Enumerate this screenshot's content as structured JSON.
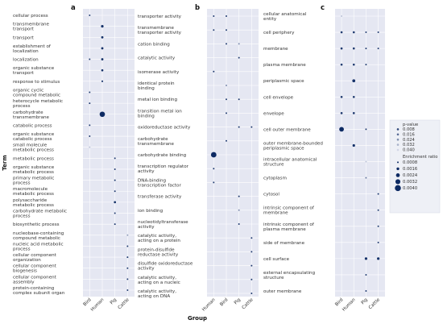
{
  "axis_titles": {
    "x": "Group",
    "y": "Term"
  },
  "legend": {
    "pvalue_title": "p-value",
    "pvalue_labels": [
      "0.008",
      "0.016",
      "0.024",
      "0.032",
      "0.040"
    ],
    "ratio_title": "Enrichment ratio",
    "ratio_labels": [
      "0.0008",
      "0.0016",
      "0.0024",
      "0.0032",
      "0.0040"
    ]
  },
  "colors": {
    "panel_bg": "#e5e7f2",
    "grid": "#ffffff",
    "dot_dark": "#0d2a63",
    "dot_light": "#c9cde0"
  },
  "chart_data": [
    {
      "type": "scatter",
      "panel": "a",
      "groups": [
        "Bird",
        "Human",
        "Pig",
        "Cattle"
      ],
      "terms_left": [
        "cellular process",
        "transmembrane transport",
        "transport",
        "establishment of localization",
        "localization",
        "organic substance transport",
        "response to stimulus",
        "organic cyclic compound metabolic process",
        "heterocycle metabolic process",
        "carbohydrate transmembrane transport",
        "catabolic process",
        "organic substance catabolic process",
        "small molecule metabolic process",
        "metabolic process",
        "organic substance metabolic process",
        "primary metabolic process",
        "macromolecule metabolic process",
        "polysaccharide metabolic process",
        "carbohydrate metabolic process",
        "biosynthetic process",
        "nucleobase-containing compound metabolic process",
        "nucleic acid metabolic process",
        "cellular component organization",
        "cellular component biogenesis",
        "cellular component assembly",
        "protein-containing complex subunit organ"
      ],
      "terms_right": [
        "transporter activity",
        "transmembrane transporter activity",
        "cation binding",
        "catalytic activity",
        "isomerase activity",
        "identical protein binding",
        "metal ion binding",
        "transition metal ion binding",
        "oxidoreductase activity",
        "carbohydrate transmembrane transporter",
        "carbohydrate binding",
        "transcription regulator activity",
        "DNA-binding transcription factor activity",
        "transferase activity",
        "ion binding",
        "nucleotidyltransferase activity",
        "catalytic activity, acting on a protein",
        "protein-disulfide reductase activity",
        "disulfide oxidoreductase activity",
        "catalytic activity, acting on a nucleic",
        "catalytic activity, acting on DNA"
      ],
      "points": [
        {
          "x": "Bird",
          "y": "cellular process",
          "pvalue": 0.008,
          "ratio": 0.0008
        },
        {
          "x": "Human",
          "y": "transmembrane transport",
          "pvalue": 0.004,
          "ratio": 0.0015
        },
        {
          "x": "Human",
          "y": "transport",
          "pvalue": 0.004,
          "ratio": 0.0013
        },
        {
          "x": "Human",
          "y": "establishment of localization",
          "pvalue": 0.004,
          "ratio": 0.0013
        },
        {
          "x": "Bird",
          "y": "localization",
          "pvalue": 0.006,
          "ratio": 0.0008
        },
        {
          "x": "Human",
          "y": "localization",
          "pvalue": 0.004,
          "ratio": 0.0013
        },
        {
          "x": "Human",
          "y": "organic substance transport",
          "pvalue": 0.004,
          "ratio": 0.0012
        },
        {
          "x": "Human",
          "y": "response to stimulus",
          "pvalue": 0.006,
          "ratio": 0.0009
        },
        {
          "x": "Bird",
          "y": "organic cyclic compound metabolic process",
          "pvalue": 0.006,
          "ratio": 0.0008
        },
        {
          "x": "Bird",
          "y": "heterocycle metabolic process",
          "pvalue": 0.006,
          "ratio": 0.0008
        },
        {
          "x": "Human",
          "y": "carbohydrate transmembrane transport",
          "pvalue": 0.002,
          "ratio": 0.0035
        },
        {
          "x": "Bird",
          "y": "catabolic process",
          "pvalue": 0.006,
          "ratio": 0.0008
        },
        {
          "x": "Bird",
          "y": "organic substance catabolic process",
          "pvalue": 0.006,
          "ratio": 0.0008
        },
        {
          "x": "Bird",
          "y": "small molecule metabolic process",
          "pvalue": 0.036,
          "ratio": 0.0008
        },
        {
          "x": "Pig",
          "y": "metabolic process",
          "pvalue": 0.006,
          "ratio": 0.0008
        },
        {
          "x": "Pig",
          "y": "organic substance metabolic process",
          "pvalue": 0.006,
          "ratio": 0.0008
        },
        {
          "x": "Pig",
          "y": "primary metabolic process",
          "pvalue": 0.006,
          "ratio": 0.0008
        },
        {
          "x": "Pig",
          "y": "macromolecule metabolic process",
          "pvalue": 0.006,
          "ratio": 0.0008
        },
        {
          "x": "Pig",
          "y": "polysaccharide metabolic process",
          "pvalue": 0.004,
          "ratio": 0.0012
        },
        {
          "x": "Pig",
          "y": "carbohydrate metabolic process",
          "pvalue": 0.006,
          "ratio": 0.0008
        },
        {
          "x": "Pig",
          "y": "biosynthetic process",
          "pvalue": 0.006,
          "ratio": 0.0008
        },
        {
          "x": "Cattle",
          "y": "nucleobase-containing compound metabolic process",
          "pvalue": 0.028,
          "ratio": 0.0008
        },
        {
          "x": "Cattle",
          "y": "nucleic acid metabolic process",
          "pvalue": 0.006,
          "ratio": 0.0008
        },
        {
          "x": "Cattle",
          "y": "cellular component organization",
          "pvalue": 0.006,
          "ratio": 0.0008
        },
        {
          "x": "Cattle",
          "y": "cellular component biogenesis",
          "pvalue": 0.006,
          "ratio": 0.0008
        },
        {
          "x": "Cattle",
          "y": "cellular component assembly",
          "pvalue": 0.006,
          "ratio": 0.0008
        },
        {
          "x": "Cattle",
          "y": "protein-containing complex subunit organ",
          "pvalue": 0.006,
          "ratio": 0.0008
        }
      ]
    },
    {
      "type": "scatter",
      "panel": "b",
      "groups": [
        "Human",
        "Bird",
        "Pig",
        "Cattle"
      ],
      "terms": [
        "cellular anatomical entity",
        "cell periphery",
        "membrane",
        "plasma membrane",
        "periplasmic space",
        "cell envelope",
        "envelope",
        "cell outer membrane",
        "outer membrane-bounded periplasmic space",
        "intracellular anatomical structure",
        "cytoplasm",
        "cytosol",
        "intrinsic component of membrane",
        "intrinsic component of plasma membrane",
        "side of membrane",
        "cell surface",
        "external encapsulating structure",
        "outer membrane"
      ],
      "points": [
        {
          "x": "Human",
          "y": "transporter activity",
          "pvalue": 0.006,
          "ratio": 0.0008
        },
        {
          "x": "Bird",
          "y": "transporter activity",
          "pvalue": 0.006,
          "ratio": 0.0008
        },
        {
          "x": "Human",
          "y": "transmembrane transporter activity",
          "pvalue": 0.006,
          "ratio": 0.0008
        },
        {
          "x": "Bird",
          "y": "transmembrane transporter activity",
          "pvalue": 0.006,
          "ratio": 0.0008
        },
        {
          "x": "Bird",
          "y": "cation binding",
          "pvalue": 0.006,
          "ratio": 0.0008
        },
        {
          "x": "Pig",
          "y": "cation binding",
          "pvalue": 0.024,
          "ratio": 0.0008
        },
        {
          "x": "Pig",
          "y": "catalytic activity",
          "pvalue": 0.006,
          "ratio": 0.0008
        },
        {
          "x": "Human",
          "y": "isomerase activity",
          "pvalue": 0.006,
          "ratio": 0.0008
        },
        {
          "x": "Bird",
          "y": "identical protein binding",
          "pvalue": 0.024,
          "ratio": 0.0008
        },
        {
          "x": "Bird",
          "y": "metal ion binding",
          "pvalue": 0.006,
          "ratio": 0.0008
        },
        {
          "x": "Pig",
          "y": "metal ion binding",
          "pvalue": 0.006,
          "ratio": 0.0008
        },
        {
          "x": "Bird",
          "y": "transition metal ion binding",
          "pvalue": 0.006,
          "ratio": 0.0008
        },
        {
          "x": "Pig",
          "y": "oxidoreductase activity",
          "pvalue": 0.006,
          "ratio": 0.0008
        },
        {
          "x": "Cattle",
          "y": "oxidoreductase activity",
          "pvalue": 0.006,
          "ratio": 0.0008
        },
        {
          "x": "Bird",
          "y": "carbohydrate transmembrane transporter",
          "pvalue": 0.006,
          "ratio": 0.0008
        },
        {
          "x": "Human",
          "y": "carbohydrate binding",
          "pvalue": 0.002,
          "ratio": 0.0036
        },
        {
          "x": "Human",
          "y": "transcription regulator activity",
          "pvalue": 0.006,
          "ratio": 0.0008
        },
        {
          "x": "Human",
          "y": "DNA-binding transcription factor activity",
          "pvalue": 0.006,
          "ratio": 0.0008
        },
        {
          "x": "Pig",
          "y": "transferase activity",
          "pvalue": 0.006,
          "ratio": 0.0008
        },
        {
          "x": "Pig",
          "y": "ion binding",
          "pvalue": 0.024,
          "ratio": 0.0008
        },
        {
          "x": "Pig",
          "y": "nucleotidyltransferase activity",
          "pvalue": 0.006,
          "ratio": 0.0008
        },
        {
          "x": "Cattle",
          "y": "catalytic activity, acting on a protein",
          "pvalue": 0.006,
          "ratio": 0.0008
        },
        {
          "x": "Cattle",
          "y": "protein-disulfide reductase activity",
          "pvalue": 0.006,
          "ratio": 0.0008
        },
        {
          "x": "Cattle",
          "y": "disulfide oxidoreductase activity",
          "pvalue": 0.006,
          "ratio": 0.0008
        },
        {
          "x": "Cattle",
          "y": "catalytic activity, acting on a nucleic",
          "pvalue": 0.006,
          "ratio": 0.0008
        },
        {
          "x": "Cattle",
          "y": "catalytic activity, acting on DNA",
          "pvalue": 0.006,
          "ratio": 0.0008
        }
      ]
    },
    {
      "type": "scatter",
      "panel": "c",
      "groups": [
        "Bird",
        "Human",
        "Pig",
        "Cattle"
      ],
      "points": [
        {
          "x": "Bird",
          "y": "cellular anatomical entity",
          "pvalue": 0.036,
          "ratio": 0.0008
        },
        {
          "x": "Bird",
          "y": "cell periphery",
          "pvalue": 0.006,
          "ratio": 0.0012
        },
        {
          "x": "Human",
          "y": "cell periphery",
          "pvalue": 0.006,
          "ratio": 0.0012
        },
        {
          "x": "Pig",
          "y": "cell periphery",
          "pvalue": 0.006,
          "ratio": 0.0008
        },
        {
          "x": "Cattle",
          "y": "cell periphery",
          "pvalue": 0.006,
          "ratio": 0.0008
        },
        {
          "x": "Bird",
          "y": "membrane",
          "pvalue": 0.006,
          "ratio": 0.0012
        },
        {
          "x": "Human",
          "y": "membrane",
          "pvalue": 0.006,
          "ratio": 0.0012
        },
        {
          "x": "Pig",
          "y": "membrane",
          "pvalue": 0.006,
          "ratio": 0.0008
        },
        {
          "x": "Cattle",
          "y": "membrane",
          "pvalue": 0.006,
          "ratio": 0.0008
        },
        {
          "x": "Bird",
          "y": "plasma membrane",
          "pvalue": 0.006,
          "ratio": 0.0012
        },
        {
          "x": "Human",
          "y": "plasma membrane",
          "pvalue": 0.006,
          "ratio": 0.0012
        },
        {
          "x": "Pig",
          "y": "plasma membrane",
          "pvalue": 0.006,
          "ratio": 0.0008
        },
        {
          "x": "Human",
          "y": "periplasmic space",
          "pvalue": 0.004,
          "ratio": 0.0018
        },
        {
          "x": "Bird",
          "y": "cell envelope",
          "pvalue": 0.006,
          "ratio": 0.0012
        },
        {
          "x": "Human",
          "y": "cell envelope",
          "pvalue": 0.006,
          "ratio": 0.0012
        },
        {
          "x": "Bird",
          "y": "envelope",
          "pvalue": 0.006,
          "ratio": 0.0012
        },
        {
          "x": "Human",
          "y": "envelope",
          "pvalue": 0.006,
          "ratio": 0.0012
        },
        {
          "x": "Bird",
          "y": "cell outer membrane",
          "pvalue": 0.002,
          "ratio": 0.003
        },
        {
          "x": "Pig",
          "y": "cell outer membrane",
          "pvalue": 0.006,
          "ratio": 0.0008
        },
        {
          "x": "Human",
          "y": "outer membrane-bounded periplasmic space",
          "pvalue": 0.004,
          "ratio": 0.0015
        },
        {
          "x": "Pig",
          "y": "intracellular anatomical structure",
          "pvalue": 0.036,
          "ratio": 0.0008
        },
        {
          "x": "Pig",
          "y": "cytoplasm",
          "pvalue": 0.02,
          "ratio": 0.0008
        },
        {
          "x": "Cattle",
          "y": "cytosol",
          "pvalue": 0.006,
          "ratio": 0.0008
        },
        {
          "x": "Cattle",
          "y": "intrinsic component of membrane",
          "pvalue": 0.006,
          "ratio": 0.0008
        },
        {
          "x": "Cattle",
          "y": "intrinsic component of plasma membrane",
          "pvalue": 0.006,
          "ratio": 0.0008
        },
        {
          "x": "Cattle",
          "y": "side of membrane",
          "pvalue": 0.006,
          "ratio": 0.0008
        },
        {
          "x": "Pig",
          "y": "cell surface",
          "pvalue": 0.004,
          "ratio": 0.0015
        },
        {
          "x": "Cattle",
          "y": "cell surface",
          "pvalue": 0.004,
          "ratio": 0.0015
        },
        {
          "x": "Pig",
          "y": "external encapsulating structure",
          "pvalue": 0.006,
          "ratio": 0.0008
        },
        {
          "x": "Pig",
          "y": "outer membrane",
          "pvalue": 0.006,
          "ratio": 0.0008
        }
      ]
    }
  ]
}
